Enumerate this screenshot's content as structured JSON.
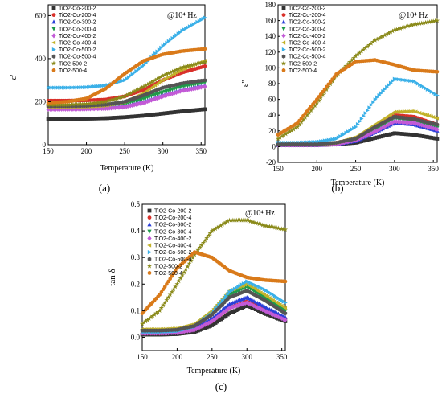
{
  "chart_data": [
    {
      "panel": "(a)",
      "type": "scatter",
      "annotation": "@10⁴ Hz",
      "xlabel": "Temperature (K)",
      "ylabel": "ε'",
      "xlim": [
        150,
        355
      ],
      "ylim": [
        0,
        650
      ],
      "xticks": [
        150,
        200,
        250,
        300,
        350
      ],
      "yticks": [
        0,
        200,
        400,
        600
      ],
      "legend_position": "top-left",
      "x": [
        150,
        175,
        200,
        225,
        250,
        275,
        300,
        325,
        355
      ],
      "series": [
        {
          "name": "TiO2-Co-200-2",
          "marker": "square",
          "color": "#333333",
          "values": [
            120,
            120,
            121,
            123,
            128,
            135,
            145,
            155,
            165
          ]
        },
        {
          "name": "TiO2-Co-200-4",
          "marker": "circle",
          "color": "#d9302a",
          "values": [
            205,
            205,
            206,
            210,
            225,
            255,
            300,
            335,
            365
          ]
        },
        {
          "name": "TiO2-Co-300-2",
          "marker": "triangle-up",
          "color": "#2a3fd9",
          "values": [
            170,
            170,
            170,
            172,
            180,
            200,
            230,
            255,
            275
          ]
        },
        {
          "name": "TiO2-Co-300-4",
          "marker": "triangle-down",
          "color": "#1f9a4a",
          "values": [
            175,
            175,
            176,
            180,
            190,
            215,
            245,
            270,
            290
          ]
        },
        {
          "name": "TiO2-Co-400-2",
          "marker": "diamond",
          "color": "#c25ad6",
          "values": [
            165,
            165,
            166,
            168,
            175,
            195,
            225,
            250,
            270
          ]
        },
        {
          "name": "TiO2-Co-400-4",
          "marker": "triangle-left",
          "color": "#c2b22a",
          "values": [
            175,
            175,
            176,
            182,
            200,
            240,
            300,
            350,
            390
          ]
        },
        {
          "name": "TiO2-Co-500-2",
          "marker": "triangle-right",
          "color": "#3ab0e8",
          "values": [
            265,
            265,
            267,
            275,
            300,
            370,
            460,
            530,
            590
          ]
        },
        {
          "name": "TiO2-Co-500-4",
          "marker": "hexagon",
          "color": "#555555",
          "values": [
            180,
            180,
            181,
            186,
            200,
            230,
            265,
            285,
            300
          ]
        },
        {
          "name": "TiO2-500-2",
          "marker": "star",
          "color": "#8a8a1a",
          "values": [
            185,
            186,
            190,
            200,
            225,
            270,
            320,
            360,
            385
          ]
        },
        {
          "name": "TiO2-500-4",
          "marker": "circle",
          "color": "#d97a1a",
          "values": [
            195,
            200,
            215,
            260,
            330,
            390,
            420,
            435,
            445
          ]
        }
      ]
    },
    {
      "panel": "(b)",
      "type": "scatter",
      "annotation": "@10⁴ Hz",
      "xlabel": "Temperature (K)",
      "ylabel": "ε''",
      "xlim": [
        150,
        355
      ],
      "ylim": [
        -20,
        180
      ],
      "xticks": [
        150,
        200,
        250,
        300,
        350
      ],
      "yticks": [
        -20,
        0,
        20,
        40,
        60,
        80,
        100,
        120,
        140,
        160,
        180
      ],
      "legend_position": "top-left",
      "x": [
        150,
        175,
        200,
        225,
        250,
        275,
        300,
        325,
        355
      ],
      "series": [
        {
          "name": "TiO2-Co-200-2",
          "marker": "square",
          "color": "#333333",
          "values": [
            2,
            2,
            2,
            3,
            5,
            11,
            17,
            15,
            10
          ]
        },
        {
          "name": "TiO2-Co-200-4",
          "marker": "circle",
          "color": "#d9302a",
          "values": [
            3,
            3,
            3,
            5,
            10,
            25,
            40,
            38,
            28
          ]
        },
        {
          "name": "TiO2-Co-300-2",
          "marker": "triangle-up",
          "color": "#2a3fd9",
          "values": [
            2,
            2,
            2,
            3,
            7,
            18,
            30,
            28,
            20
          ]
        },
        {
          "name": "TiO2-Co-300-4",
          "marker": "triangle-down",
          "color": "#1f9a4a",
          "values": [
            2,
            2,
            2,
            4,
            9,
            22,
            36,
            33,
            24
          ]
        },
        {
          "name": "TiO2-Co-400-2",
          "marker": "diamond",
          "color": "#c25ad6",
          "values": [
            2,
            2,
            2,
            3,
            8,
            19,
            32,
            30,
            22
          ]
        },
        {
          "name": "TiO2-Co-400-4",
          "marker": "triangle-left",
          "color": "#c2b22a",
          "values": [
            3,
            3,
            3,
            5,
            12,
            28,
            44,
            45,
            36
          ]
        },
        {
          "name": "TiO2-Co-500-2",
          "marker": "triangle-right",
          "color": "#3ab0e8",
          "values": [
            5,
            5,
            6,
            10,
            25,
            60,
            86,
            83,
            65
          ]
        },
        {
          "name": "TiO2-Co-500-4",
          "marker": "hexagon",
          "color": "#555555",
          "values": [
            3,
            3,
            3,
            5,
            10,
            25,
            38,
            35,
            28
          ]
        },
        {
          "name": "TiO2-500-2",
          "marker": "star",
          "color": "#8a8a1a",
          "values": [
            10,
            25,
            55,
            90,
            115,
            135,
            148,
            155,
            160
          ]
        },
        {
          "name": "TiO2-500-4",
          "marker": "circle",
          "color": "#d97a1a",
          "values": [
            15,
            30,
            60,
            92,
            108,
            110,
            104,
            97,
            95
          ]
        }
      ]
    },
    {
      "panel": "(c)",
      "type": "scatter",
      "annotation": "@10⁴ Hz",
      "xlabel": "Temperature (K)",
      "ylabel": "tan δ",
      "xlim": [
        150,
        355
      ],
      "ylim": [
        -0.05,
        0.5
      ],
      "xticks": [
        150,
        200,
        250,
        300,
        350
      ],
      "yticks": [
        0.0,
        0.1,
        0.2,
        0.3,
        0.4,
        0.5
      ],
      "legend_position": "top-left",
      "x": [
        150,
        175,
        200,
        225,
        250,
        275,
        300,
        325,
        355
      ],
      "series": [
        {
          "name": "TiO2-Co-200-2",
          "marker": "square",
          "color": "#333333",
          "values": [
            0.01,
            0.01,
            0.012,
            0.02,
            0.045,
            0.09,
            0.12,
            0.09,
            0.06
          ]
        },
        {
          "name": "TiO2-Co-200-4",
          "marker": "circle",
          "color": "#d9302a",
          "values": [
            0.015,
            0.015,
            0.018,
            0.03,
            0.06,
            0.11,
            0.135,
            0.105,
            0.07
          ]
        },
        {
          "name": "TiO2-Co-300-2",
          "marker": "triangle-up",
          "color": "#2a3fd9",
          "values": [
            0.02,
            0.02,
            0.022,
            0.035,
            0.07,
            0.125,
            0.15,
            0.115,
            0.075
          ]
        },
        {
          "name": "TiO2-Co-300-4",
          "marker": "triangle-down",
          "color": "#1f9a4a",
          "values": [
            0.025,
            0.025,
            0.028,
            0.045,
            0.09,
            0.16,
            0.19,
            0.15,
            0.1
          ]
        },
        {
          "name": "TiO2-Co-400-2",
          "marker": "diamond",
          "color": "#c25ad6",
          "values": [
            0.015,
            0.015,
            0.017,
            0.028,
            0.06,
            0.11,
            0.13,
            0.1,
            0.065
          ]
        },
        {
          "name": "TiO2-Co-400-4",
          "marker": "triangle-left",
          "color": "#c2b22a",
          "values": [
            0.03,
            0.03,
            0.033,
            0.05,
            0.1,
            0.175,
            0.2,
            0.16,
            0.11
          ]
        },
        {
          "name": "TiO2-Co-500-2",
          "marker": "triangle-right",
          "color": "#3ab0e8",
          "values": [
            0.02,
            0.02,
            0.023,
            0.04,
            0.09,
            0.17,
            0.21,
            0.18,
            0.13
          ]
        },
        {
          "name": "TiO2-Co-500-4",
          "marker": "hexagon",
          "color": "#555555",
          "values": [
            0.025,
            0.025,
            0.028,
            0.043,
            0.085,
            0.15,
            0.175,
            0.14,
            0.09
          ]
        },
        {
          "name": "TiO2-500-2",
          "marker": "star",
          "color": "#8a8a1a",
          "values": [
            0.05,
            0.1,
            0.2,
            0.31,
            0.4,
            0.44,
            0.44,
            0.42,
            0.405
          ]
        },
        {
          "name": "TiO2-500-4",
          "marker": "circle",
          "color": "#d97a1a",
          "values": [
            0.09,
            0.16,
            0.26,
            0.32,
            0.3,
            0.25,
            0.225,
            0.215,
            0.21
          ]
        }
      ]
    }
  ]
}
